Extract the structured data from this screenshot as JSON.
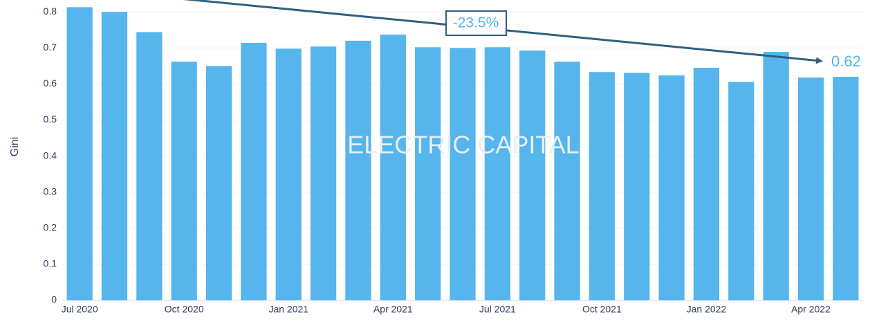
{
  "chart_data": {
    "type": "bar",
    "y_label": "Gini",
    "watermark": "ELECTRIC CAPITAL",
    "annotations": [
      "-23.5%",
      "0.62"
    ],
    "categories": [
      "Jul 2020",
      null,
      null,
      "Oct 2020",
      null,
      null,
      "Jan 2021",
      null,
      null,
      "Apr 2021",
      null,
      null,
      "Jul 2021",
      null,
      null,
      "Oct 2021",
      null,
      null,
      "Jan 2022",
      null,
      null,
      "Apr 2022",
      null
    ],
    "values": [
      0.813,
      0.8,
      0.744,
      0.662,
      0.65,
      0.714,
      0.698,
      0.704,
      0.72,
      0.737,
      0.702,
      0.7,
      0.702,
      0.693,
      0.662,
      0.633,
      0.631,
      0.624,
      0.645,
      0.606,
      0.689,
      0.618,
      0.62
    ],
    "color": "#55b5ec",
    "ylim": [
      0,
      0.833
    ],
    "yticks": [
      0,
      0.1,
      0.2,
      0.3,
      0.4,
      0.5,
      0.6,
      0.7,
      0.8
    ],
    "grid": true
  }
}
